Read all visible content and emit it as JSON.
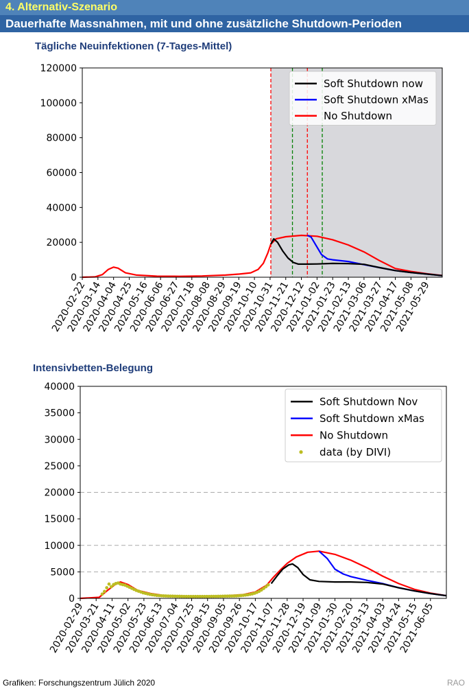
{
  "header": {
    "scenario_label": "4. Alternativ-Szenario",
    "subtitle": "Dauerhafte Massnahmen, mit und ohne zusätzliche Shutdown-Perioden"
  },
  "footer": {
    "credit": "Grafiken: Forschungszentrum Jülich 2020",
    "initials": "RAO"
  },
  "colors": {
    "black_series": "#000000",
    "blue_series": "#0000ff",
    "red_series": "#ff0000",
    "data_points": "#bcbd22",
    "shade": "#d8d8dc",
    "red_vline": "#ff0000",
    "green_vline": "#008000",
    "grid_dash": "#aaaaaa"
  },
  "chart_data": [
    {
      "type": "line",
      "title": "Tägliche Neuinfektionen (7-Tages-Mittel)",
      "x_start": "2020-02-22",
      "x_end": "2021-06-19",
      "xticks": [
        "2020-02-22",
        "2020-03-14",
        "2020-04-04",
        "2020-04-25",
        "2020-05-16",
        "2020-06-06",
        "2020-06-27",
        "2020-07-18",
        "2020-08-08",
        "2020-08-29",
        "2020-09-19",
        "2020-10-10",
        "2020-10-31",
        "2020-11-21",
        "2020-12-12",
        "2021-01-02",
        "2021-01-23",
        "2021-02-13",
        "2021-03-06",
        "2021-03-27",
        "2021-04-17",
        "2021-05-08",
        "2021-05-29"
      ],
      "yticks": [
        0,
        20000,
        40000,
        60000,
        80000,
        100000,
        120000
      ],
      "ylim": [
        0,
        120000
      ],
      "shaded_region": [
        "2020-11-01",
        "2021-06-19"
      ],
      "vlines": [
        {
          "date": "2020-11-01",
          "color": "red"
        },
        {
          "date": "2020-11-30",
          "color": "green"
        },
        {
          "date": "2020-12-20",
          "color": "red"
        },
        {
          "date": "2021-01-09",
          "color": "green"
        }
      ],
      "legend": [
        "Soft Shutdown now",
        "Soft Shutdown xMas",
        "No Shutdown"
      ],
      "series": [
        {
          "name": "No Shutdown",
          "color": "red",
          "points": [
            [
              "2020-02-22",
              0
            ],
            [
              "2020-03-10",
              200
            ],
            [
              "2020-03-20",
              1500
            ],
            [
              "2020-03-28",
              4500
            ],
            [
              "2020-04-04",
              5800
            ],
            [
              "2020-04-10",
              5200
            ],
            [
              "2020-04-20",
              2500
            ],
            [
              "2020-05-05",
              1200
            ],
            [
              "2020-06-01",
              600
            ],
            [
              "2020-07-01",
              500
            ],
            [
              "2020-08-01",
              700
            ],
            [
              "2020-09-01",
              1200
            ],
            [
              "2020-09-20",
              1800
            ],
            [
              "2020-10-05",
              2500
            ],
            [
              "2020-10-15",
              4500
            ],
            [
              "2020-10-22",
              8000
            ],
            [
              "2020-10-28",
              14000
            ],
            [
              "2020-11-01",
              19000
            ],
            [
              "2020-11-08",
              22000
            ],
            [
              "2020-11-21",
              23200
            ],
            [
              "2020-12-12",
              24000
            ],
            [
              "2021-01-02",
              23500
            ],
            [
              "2021-01-23",
              21500
            ],
            [
              "2021-02-13",
              18500
            ],
            [
              "2021-03-06",
              14500
            ],
            [
              "2021-03-27",
              9500
            ],
            [
              "2021-04-17",
              5000
            ],
            [
              "2021-05-08",
              3300
            ],
            [
              "2021-05-29",
              2000
            ],
            [
              "2021-06-19",
              1000
            ]
          ]
        },
        {
          "name": "Soft Shutdown xMas",
          "color": "blue",
          "points": [
            [
              "2020-12-20",
              24000
            ],
            [
              "2020-12-25",
              23000
            ],
            [
              "2021-01-01",
              18000
            ],
            [
              "2021-01-08",
              13000
            ],
            [
              "2021-01-16",
              10500
            ],
            [
              "2021-01-23",
              10000
            ],
            [
              "2021-02-13",
              9000
            ],
            [
              "2021-03-06",
              7200
            ],
            [
              "2021-03-27",
              5500
            ],
            [
              "2021-04-17",
              3800
            ],
            [
              "2021-05-08",
              2700
            ],
            [
              "2021-05-29",
              1800
            ],
            [
              "2021-06-19",
              900
            ]
          ]
        },
        {
          "name": "Soft Shutdown now",
          "color": "black",
          "points": [
            [
              "2020-11-01",
              19000
            ],
            [
              "2020-11-05",
              22000
            ],
            [
              "2020-11-10",
              20000
            ],
            [
              "2020-11-17",
              15000
            ],
            [
              "2020-11-24",
              11000
            ],
            [
              "2020-12-01",
              8500
            ],
            [
              "2020-12-08",
              7500
            ],
            [
              "2020-12-20",
              7500
            ],
            [
              "2021-01-02",
              7600
            ],
            [
              "2021-01-23",
              7900
            ],
            [
              "2021-02-13",
              7800
            ],
            [
              "2021-03-06",
              7400
            ],
            [
              "2021-03-27",
              5500
            ],
            [
              "2021-04-17",
              3800
            ],
            [
              "2021-05-08",
              2700
            ],
            [
              "2021-05-29",
              1800
            ],
            [
              "2021-06-19",
              900
            ]
          ]
        }
      ]
    },
    {
      "type": "line",
      "title": "Intensivbetten-Belegung",
      "x_start": "2020-02-29",
      "x_end": "2021-06-26",
      "xticks": [
        "2020-02-29",
        "2020-03-21",
        "2020-04-11",
        "2020-05-02",
        "2020-05-23",
        "2020-06-13",
        "2020-07-04",
        "2020-07-25",
        "2020-08-15",
        "2020-09-05",
        "2020-09-26",
        "2020-10-17",
        "2020-11-07",
        "2020-11-28",
        "2020-12-19",
        "2021-01-09",
        "2021-01-30",
        "2021-02-20",
        "2021-03-13",
        "2021-04-03",
        "2021-04-24",
        "2021-05-15",
        "2021-06-05"
      ],
      "yticks": [
        0,
        5000,
        10000,
        15000,
        20000,
        25000,
        30000,
        35000,
        40000
      ],
      "ylim": [
        0,
        40000
      ],
      "grid_lines": [
        5000,
        10000,
        20000
      ],
      "legend": [
        "Soft Shutdown Nov",
        "Soft Shutdown xMas",
        "No Shutdown",
        "data (by DIVI)"
      ],
      "series": [
        {
          "name": "No Shutdown",
          "color": "red",
          "points": [
            [
              "2020-02-29",
              0
            ],
            [
              "2020-03-25",
              200
            ],
            [
              "2020-04-05",
              1500
            ],
            [
              "2020-04-15",
              2600
            ],
            [
              "2020-04-22",
              3100
            ],
            [
              "2020-05-02",
              2600
            ],
            [
              "2020-05-15",
              1500
            ],
            [
              "2020-06-01",
              900
            ],
            [
              "2020-06-20",
              500
            ],
            [
              "2020-08-01",
              400
            ],
            [
              "2020-09-05",
              450
            ],
            [
              "2020-10-01",
              700
            ],
            [
              "2020-10-17",
              1200
            ],
            [
              "2020-11-01",
              2500
            ],
            [
              "2020-11-10",
              4000
            ],
            [
              "2020-11-20",
              5500
            ],
            [
              "2020-11-28",
              6600
            ],
            [
              "2020-12-10",
              7800
            ],
            [
              "2020-12-25",
              8700
            ],
            [
              "2021-01-09",
              8900
            ],
            [
              "2021-01-30",
              8300
            ],
            [
              "2021-02-20",
              7200
            ],
            [
              "2021-03-13",
              5800
            ],
            [
              "2021-04-03",
              4200
            ],
            [
              "2021-04-24",
              2800
            ],
            [
              "2021-05-15",
              1700
            ],
            [
              "2021-06-05",
              1000
            ],
            [
              "2021-06-26",
              500
            ]
          ]
        },
        {
          "name": "Soft Shutdown xMas",
          "color": "blue",
          "points": [
            [
              "2021-01-09",
              8900
            ],
            [
              "2021-01-20",
              7500
            ],
            [
              "2021-01-30",
              5500
            ],
            [
              "2021-02-10",
              4600
            ],
            [
              "2021-02-20",
              4100
            ],
            [
              "2021-03-13",
              3400
            ],
            [
              "2021-04-03",
              2800
            ],
            [
              "2021-04-24",
              2000
            ],
            [
              "2021-05-15",
              1400
            ],
            [
              "2021-06-05",
              900
            ],
            [
              "2021-06-26",
              500
            ]
          ]
        },
        {
          "name": "Soft Shutdown Nov",
          "color": "black",
          "points": [
            [
              "2020-11-07",
              2800
            ],
            [
              "2020-11-15",
              4300
            ],
            [
              "2020-11-22",
              5500
            ],
            [
              "2020-11-30",
              6300
            ],
            [
              "2020-12-05",
              6500
            ],
            [
              "2020-12-12",
              5800
            ],
            [
              "2020-12-19",
              4500
            ],
            [
              "2020-12-28",
              3500
            ],
            [
              "2021-01-09",
              3200
            ],
            [
              "2021-01-30",
              3100
            ],
            [
              "2021-02-20",
              3100
            ],
            [
              "2021-03-13",
              3000
            ],
            [
              "2021-04-03",
              2700
            ],
            [
              "2021-04-24",
              2000
            ],
            [
              "2021-05-15",
              1400
            ],
            [
              "2021-06-05",
              900
            ],
            [
              "2021-06-26",
              500
            ]
          ]
        },
        {
          "name": "data (by DIVI)",
          "color": "data",
          "markers": "dots",
          "points": [
            [
              "2020-03-29",
              800
            ],
            [
              "2020-04-01",
              1300
            ],
            [
              "2020-04-04",
              2000
            ],
            [
              "2020-04-07",
              2700
            ],
            [
              "2020-04-10",
              2200
            ],
            [
              "2020-04-13",
              2600
            ],
            [
              "2020-04-16",
              2800
            ],
            [
              "2020-04-19",
              2900
            ],
            [
              "2020-04-22",
              2700
            ],
            [
              "2020-04-25",
              2600
            ],
            [
              "2020-04-28",
              2500
            ],
            [
              "2020-05-01",
              2300
            ],
            [
              "2020-05-04",
              2100
            ],
            [
              "2020-05-07",
              1900
            ],
            [
              "2020-05-10",
              1700
            ],
            [
              "2020-05-13",
              1500
            ],
            [
              "2020-05-16",
              1350
            ],
            [
              "2020-05-19",
              1200
            ],
            [
              "2020-05-22",
              1050
            ],
            [
              "2020-05-25",
              950
            ],
            [
              "2020-05-28",
              850
            ],
            [
              "2020-05-31",
              750
            ],
            [
              "2020-06-03",
              680
            ],
            [
              "2020-06-06",
              620
            ],
            [
              "2020-06-09",
              560
            ],
            [
              "2020-06-12",
              520
            ],
            [
              "2020-06-15",
              490
            ],
            [
              "2020-06-18",
              470
            ],
            [
              "2020-06-21",
              450
            ],
            [
              "2020-06-24",
              430
            ],
            [
              "2020-06-27",
              420
            ],
            [
              "2020-06-30",
              410
            ],
            [
              "2020-07-03",
              400
            ],
            [
              "2020-07-06",
              390
            ],
            [
              "2020-07-09",
              380
            ],
            [
              "2020-07-12",
              370
            ],
            [
              "2020-07-15",
              360
            ],
            [
              "2020-07-18",
              355
            ],
            [
              "2020-07-21",
              350
            ],
            [
              "2020-07-24",
              350
            ],
            [
              "2020-07-27",
              350
            ],
            [
              "2020-07-30",
              350
            ],
            [
              "2020-08-02",
              350
            ],
            [
              "2020-08-05",
              350
            ],
            [
              "2020-08-08",
              350
            ],
            [
              "2020-08-11",
              350
            ],
            [
              "2020-08-14",
              355
            ],
            [
              "2020-08-17",
              360
            ],
            [
              "2020-08-20",
              365
            ],
            [
              "2020-08-23",
              370
            ],
            [
              "2020-08-26",
              375
            ],
            [
              "2020-08-29",
              380
            ],
            [
              "2020-09-01",
              390
            ],
            [
              "2020-09-04",
              400
            ],
            [
              "2020-09-07",
              410
            ],
            [
              "2020-09-10",
              420
            ],
            [
              "2020-09-13",
              430
            ],
            [
              "2020-09-16",
              440
            ],
            [
              "2020-09-19",
              450
            ],
            [
              "2020-09-22",
              470
            ],
            [
              "2020-09-25",
              500
            ],
            [
              "2020-09-28",
              530
            ],
            [
              "2020-10-01",
              570
            ],
            [
              "2020-10-04",
              620
            ],
            [
              "2020-10-07",
              680
            ],
            [
              "2020-10-10",
              760
            ],
            [
              "2020-10-13",
              850
            ],
            [
              "2020-10-16",
              970
            ],
            [
              "2020-10-19",
              1120
            ],
            [
              "2020-10-22",
              1320
            ],
            [
              "2020-10-25",
              1580
            ],
            [
              "2020-10-28",
              1880
            ],
            [
              "2020-10-31",
              2200
            ],
            [
              "2020-11-03",
              2550
            ]
          ]
        }
      ]
    }
  ]
}
